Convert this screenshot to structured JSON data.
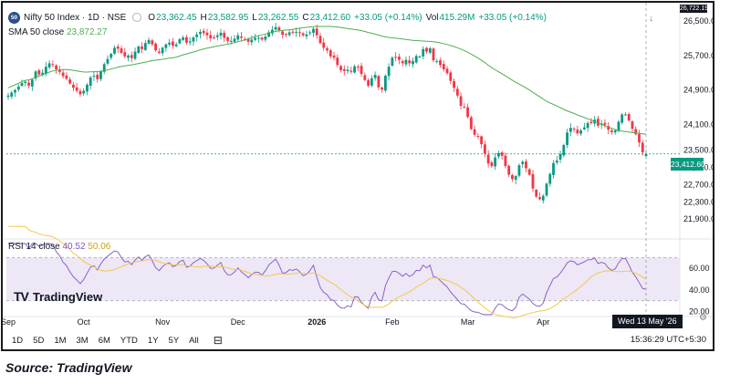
{
  "header": {
    "symbol_badge": "50",
    "symbol_title": "Nifty 50 Index · 1D · NSE",
    "open_key": "O",
    "open_val": "23,362.45",
    "high_key": "H",
    "high_val": "23,582.95",
    "low_key": "L",
    "low_val": "23,262.55",
    "close_key": "C",
    "close_val": "23,412.60",
    "change_val": "+33.05 (+0.14%)",
    "vol_key": "Vol",
    "vol_val": "415.29M",
    "vol_change_val": "+33.05 (+0.14%)"
  },
  "sma_legend": {
    "label": "SMA 50 close",
    "value": "23,872.27"
  },
  "rsi_legend": {
    "label": "RSI 14 close",
    "value1": "40.52",
    "value2": "50.06"
  },
  "watermark": {
    "logo": "TV",
    "text": "TradingView"
  },
  "last_price_label": "23,412.60",
  "last_price_top_label": "26,722.19",
  "crosshair_date": "Wed 13 May '26",
  "toolbar": {
    "timeframes": [
      "1D",
      "5D",
      "1M",
      "3M",
      "6M",
      "YTD",
      "1Y",
      "5Y",
      "All"
    ],
    "clock": "15:36:29 UTC+5:30"
  },
  "caption": "Source: TradingView",
  "colors": {
    "up": "#089981",
    "down": "#f23645",
    "sma": "#4caf50",
    "rsi": "#7e57c2",
    "rsi_ma": "#f2c94c",
    "rsi_band": "#ede7f6"
  },
  "chart_data": [
    {
      "type": "candlestick",
      "title": "Nifty 50 Index · 1D · NSE",
      "ylim": [
        21500,
        26800
      ],
      "y_ticks": [
        "26,500.00",
        "25,700.00",
        "24,900.00",
        "24,100.00",
        "23,500.00",
        "23,100.00",
        "22,700.00",
        "22,300.00",
        "21,900.00"
      ],
      "y_tick_values": [
        26500,
        25700,
        24900,
        24100,
        23500,
        23100,
        22700,
        22300,
        21900
      ],
      "x_labels": [
        "Sep",
        "Oct",
        "Nov",
        "Dec",
        "2026",
        "Feb",
        "Mar",
        "Apr",
        "May"
      ],
      "x_label_index": [
        0,
        22,
        45,
        67,
        90,
        112,
        134,
        156,
        181
      ],
      "closes": [
        24770,
        24840,
        24900,
        24980,
        25060,
        25090,
        25000,
        25140,
        25330,
        25260,
        25300,
        25440,
        25520,
        25480,
        25380,
        25320,
        25220,
        25160,
        25050,
        24950,
        24880,
        24800,
        24880,
        25020,
        25190,
        25230,
        25150,
        25330,
        25500,
        25620,
        25740,
        25880,
        25860,
        25760,
        25680,
        25700,
        25640,
        25790,
        25910,
        25850,
        25990,
        26060,
        25960,
        25820,
        25760,
        25880,
        25960,
        26000,
        25930,
        25960,
        26080,
        26120,
        26000,
        26030,
        26120,
        26190,
        26250,
        26220,
        26170,
        26100,
        26100,
        26170,
        26230,
        26110,
        26040,
        26040,
        26090,
        26170,
        26110,
        26070,
        26020,
        26070,
        26110,
        26110,
        26070,
        26140,
        26240,
        26300,
        26360,
        26290,
        26180,
        26190,
        26240,
        26230,
        26250,
        26220,
        26170,
        26190,
        26240,
        26320,
        26170,
        25990,
        25880,
        25820,
        25680,
        25650,
        25480,
        25360,
        25340,
        25370,
        25320,
        25450,
        25440,
        25270,
        25130,
        25000,
        25170,
        25250,
        24960,
        24910,
        25230,
        25440,
        25650,
        25660,
        25600,
        25520,
        25600,
        25520,
        25570,
        25690,
        25680,
        25850,
        25790,
        25870,
        25590,
        25570,
        25480,
        25380,
        25290,
        25110,
        24950,
        24770,
        24530,
        24500,
        24270,
        23990,
        23860,
        23820,
        23640,
        23420,
        23190,
        23130,
        23330,
        23430,
        23370,
        23130,
        22930,
        22830,
        22900,
        23150,
        23230,
        23080,
        22930,
        22610,
        22420,
        22360,
        22440,
        22720,
        22950,
        23200,
        23260,
        23410,
        23620,
        23910,
        24020,
        23990,
        23890,
        23960,
        24030,
        24130,
        24130,
        24210,
        24070,
        24120,
        24090,
        23980,
        23920,
        23960,
        24160,
        24330,
        24330,
        24190,
        24000,
        23870,
        23680,
        23450,
        23410
      ],
      "sma50_ends": [
        24950,
        23872.27
      ],
      "last_close": 23412.6
    },
    {
      "type": "line",
      "title": "RSI 14 close",
      "ylim": [
        17,
        83
      ],
      "y_ticks": [
        "60.00",
        "40.00",
        "20.00"
      ],
      "y_tick_values": [
        60,
        40,
        20
      ],
      "band": [
        30,
        70
      ],
      "last_rsi": 40.52,
      "last_rsi_ma": 50.06
    }
  ]
}
